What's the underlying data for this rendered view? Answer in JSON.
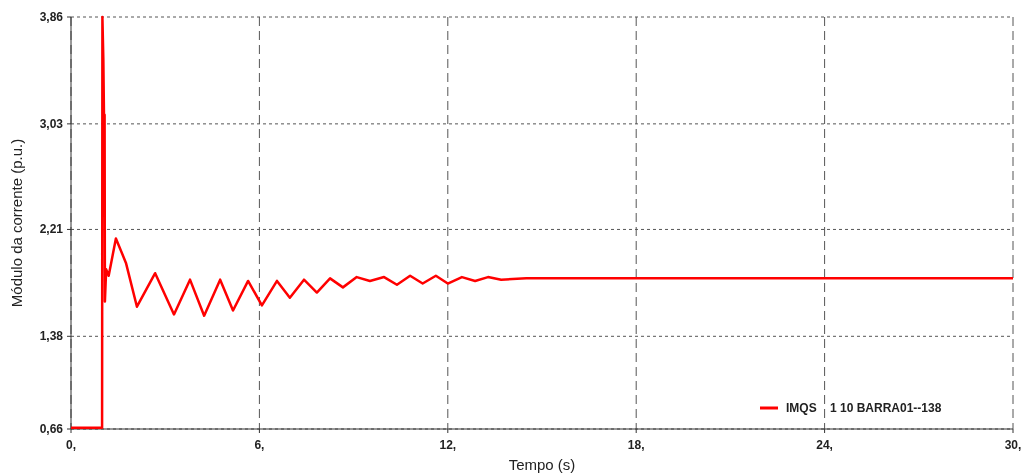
{
  "chart_data": {
    "type": "line",
    "xlabel": "Tempo (s)",
    "ylabel": "Módulo da corrente (p.u.)",
    "xlim": [
      0,
      30
    ],
    "ylim": [
      0.66,
      3.86
    ],
    "xticks": [
      {
        "value": 0,
        "label": "0,"
      },
      {
        "value": 6,
        "label": "6,"
      },
      {
        "value": 12,
        "label": "12,"
      },
      {
        "value": 18,
        "label": "18,"
      },
      {
        "value": 24,
        "label": "24,"
      },
      {
        "value": 30,
        "label": "30,"
      }
    ],
    "yticks": [
      {
        "value": 0.66,
        "label": "0,66"
      },
      {
        "value": 1.38,
        "label": "1,38"
      },
      {
        "value": 2.21,
        "label": "2,21"
      },
      {
        "value": 3.03,
        "label": "3,03"
      },
      {
        "value": 3.86,
        "label": "3,86"
      }
    ],
    "grid": true,
    "legend": "bottom right",
    "line_style": "solid",
    "marker": "none",
    "series": [
      {
        "name": "IMQS    1 10 BARRA01--138",
        "color": "#ff0000",
        "x": [
          0,
          0.99,
          1.0,
          1.03,
          1.05,
          1.07,
          1.08,
          1.12,
          1.2,
          1.43,
          1.75,
          2.1,
          2.68,
          3.28,
          3.79,
          4.24,
          4.75,
          5.16,
          5.64,
          6.08,
          6.56,
          6.97,
          7.42,
          7.83,
          8.25,
          8.66,
          9.1,
          9.52,
          9.97,
          10.38,
          10.8,
          11.2,
          11.62,
          12.0,
          12.45,
          12.87,
          13.28,
          13.7,
          14.5,
          30
        ],
        "values": [
          0.67,
          0.67,
          3.86,
          3.53,
          3.1,
          3.1,
          1.65,
          1.9,
          1.85,
          2.14,
          1.95,
          1.61,
          1.87,
          1.55,
          1.82,
          1.54,
          1.82,
          1.58,
          1.81,
          1.62,
          1.81,
          1.68,
          1.82,
          1.72,
          1.83,
          1.76,
          1.84,
          1.81,
          1.84,
          1.78,
          1.85,
          1.79,
          1.85,
          1.79,
          1.84,
          1.81,
          1.84,
          1.82,
          1.83,
          1.83
        ]
      }
    ]
  }
}
